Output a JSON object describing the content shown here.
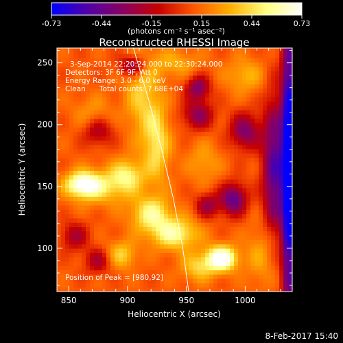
{
  "colorbar": {
    "ticks": [
      "-0.73",
      "-0.44",
      "-0.15",
      "0.15",
      "0.44",
      "0.73"
    ],
    "units": "(photons cm⁻² s⁻¹ asec⁻²)",
    "colormap": [
      "#0000ff",
      "#5000a8",
      "#8a0060",
      "#c80000",
      "#ff5a00",
      "#ffb000",
      "#ffff80",
      "#ffffff"
    ]
  },
  "title": "Reconstructed RHESSI Image",
  "annotations": {
    "time_range": "3-Sep-2014 22:20:24.000 to 22:30:24.000",
    "detectors": "Detectors: 3F 6F 9F, Att 0",
    "energy": "Energy Range: 3.0 - 6.0 keV",
    "method": "Clean",
    "counts": "Total counts: 7.68E+04",
    "peak": "Position of Peak = [980,92]"
  },
  "footer": {
    "timestamp": "8-Feb-2017 15:40"
  },
  "chart_data": {
    "type": "heatmap",
    "title": "Reconstructed RHESSI Image",
    "xlabel": "Heliocentric X (arcsec)",
    "ylabel": "Heliocentric Y (arcsec)",
    "xlim": [
      840,
      1040
    ],
    "ylim": [
      65,
      262
    ],
    "xticks": [
      850,
      900,
      950,
      1000
    ],
    "yticks": [
      100,
      150,
      200,
      250
    ],
    "color_range": [
      -0.73,
      0.73
    ],
    "peak_position": [
      980,
      92
    ],
    "limb_curve": [
      [
        905,
        262
      ],
      [
        918,
        220
      ],
      [
        929,
        180
      ],
      [
        939,
        140
      ],
      [
        947,
        100
      ],
      [
        952,
        65
      ]
    ],
    "sources": [
      {
        "x": 980,
        "y": 92,
        "sx": 9,
        "sy": 7,
        "amp": 0.73
      },
      {
        "x": 862,
        "y": 152,
        "sx": 10,
        "sy": 7,
        "amp": 0.58
      },
      {
        "x": 940,
        "y": 112,
        "sx": 14,
        "sy": 9,
        "amp": 0.46
      },
      {
        "x": 920,
        "y": 128,
        "sx": 12,
        "sy": 10,
        "amp": 0.42
      },
      {
        "x": 900,
        "y": 160,
        "sx": 10,
        "sy": 9,
        "amp": 0.34
      },
      {
        "x": 880,
        "y": 150,
        "sx": 18,
        "sy": 10,
        "amp": 0.3
      },
      {
        "x": 925,
        "y": 185,
        "sx": 8,
        "sy": 22,
        "amp": 0.36
      },
      {
        "x": 912,
        "y": 225,
        "sx": 10,
        "sy": 25,
        "amp": 0.28
      },
      {
        "x": 895,
        "y": 95,
        "sx": 9,
        "sy": 8,
        "amp": 0.3
      },
      {
        "x": 1000,
        "y": 240,
        "sx": 12,
        "sy": 10,
        "amp": 0.22
      },
      {
        "x": 965,
        "y": 170,
        "sx": 10,
        "sy": 12,
        "amp": 0.18
      },
      {
        "x": 1015,
        "y": 95,
        "sx": 10,
        "sy": 18,
        "amp": 0.2
      },
      {
        "x": 960,
        "y": 85,
        "sx": 10,
        "sy": 8,
        "amp": 0.3
      },
      {
        "x": 870,
        "y": 210,
        "sx": 12,
        "sy": 10,
        "amp": 0.15
      },
      {
        "x": 940,
        "y": 250,
        "sx": 15,
        "sy": 8,
        "amp": 0.2
      }
    ],
    "dark_regions": [
      {
        "x": 1037,
        "y": 165,
        "sx": 4,
        "sy": 90,
        "amp": -0.9
      },
      {
        "x": 1025,
        "y": 165,
        "sx": 7,
        "sy": 40,
        "amp": -0.6
      },
      {
        "x": 990,
        "y": 140,
        "sx": 8,
        "sy": 9,
        "amp": -0.55
      },
      {
        "x": 905,
        "y": 248,
        "sx": 8,
        "sy": 6,
        "amp": -0.45
      },
      {
        "x": 1000,
        "y": 195,
        "sx": 9,
        "sy": 10,
        "amp": -0.45
      },
      {
        "x": 960,
        "y": 208,
        "sx": 9,
        "sy": 8,
        "amp": -0.4
      },
      {
        "x": 875,
        "y": 195,
        "sx": 9,
        "sy": 8,
        "amp": -0.3
      },
      {
        "x": 855,
        "y": 110,
        "sx": 8,
        "sy": 8,
        "amp": -0.3
      },
      {
        "x": 875,
        "y": 90,
        "sx": 8,
        "sy": 7,
        "amp": -0.3
      },
      {
        "x": 968,
        "y": 135,
        "sx": 7,
        "sy": 7,
        "amp": -0.35
      },
      {
        "x": 960,
        "y": 230,
        "sx": 7,
        "sy": 7,
        "amp": -0.45
      }
    ],
    "baseline": 0.1
  }
}
